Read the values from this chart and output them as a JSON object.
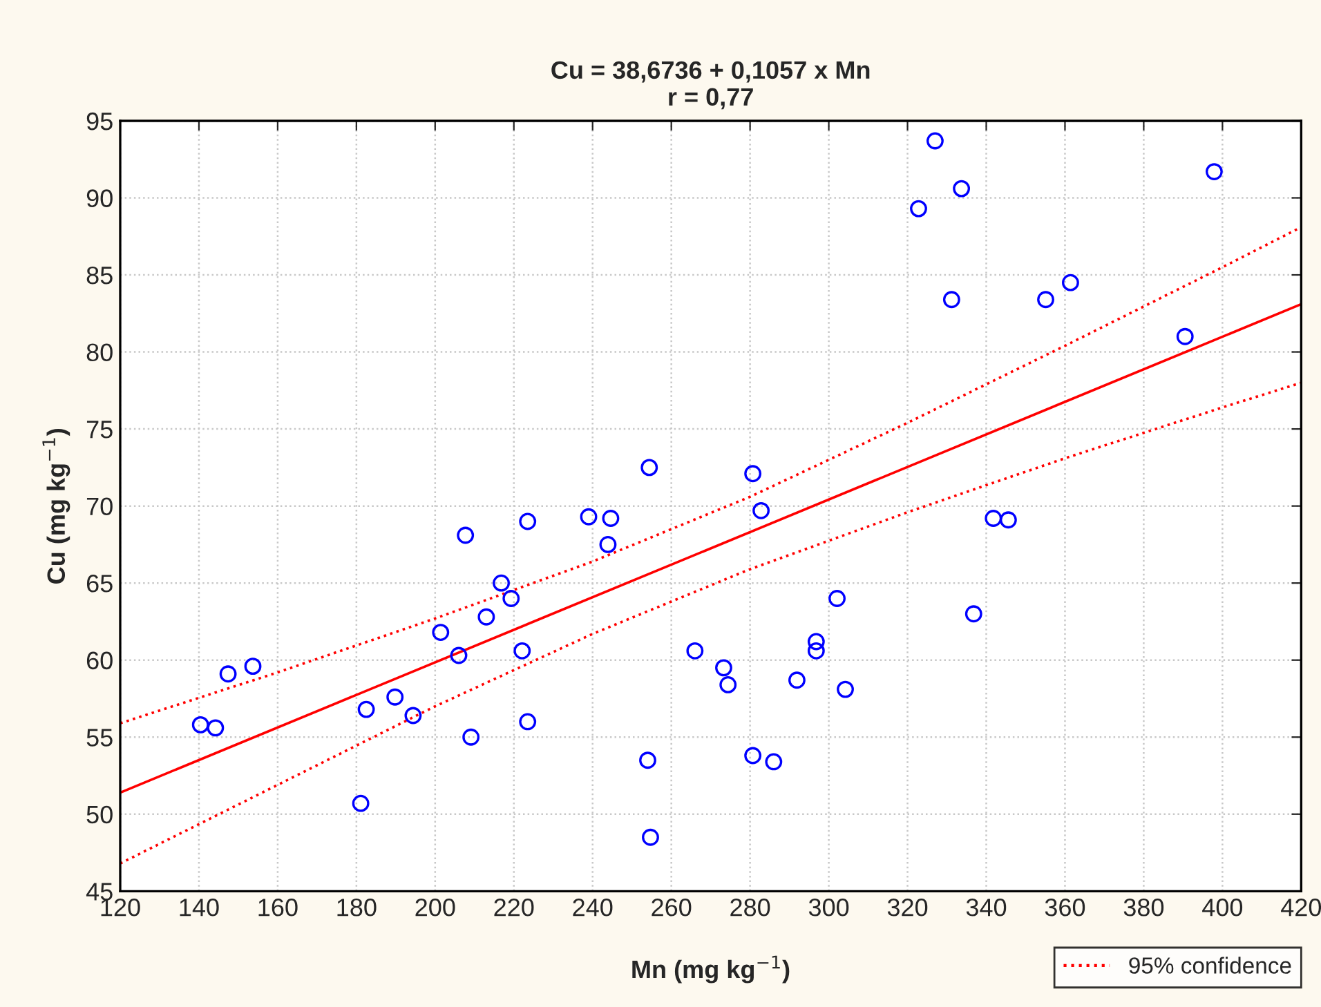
{
  "chart_data": {
    "type": "scatter",
    "title": "Cu = 38,6736 + 0,1057 x Mn\nr = 0,77",
    "xlabel": "Mn (mg kg$^{−1}$)",
    "ylabel": "Cu (mg kg$^{−1}$)",
    "xlim": [
      120,
      420
    ],
    "ylim": [
      45,
      95
    ],
    "xticks": [
      120,
      140,
      160,
      180,
      200,
      220,
      240,
      260,
      280,
      300,
      320,
      340,
      360,
      380,
      400,
      420
    ],
    "yticks": [
      45,
      50,
      55,
      60,
      65,
      70,
      75,
      80,
      85,
      90,
      95
    ],
    "grid": true,
    "legend": "bottom right",
    "series": [
      {
        "color": "#0000ff",
        "marker": "circle",
        "x": [
          140.4,
          144.2,
          147.4,
          153.7,
          181.1,
          182.5,
          189.8,
          194.4,
          201.4,
          206.0,
          207.7,
          209.1,
          213.0,
          216.8,
          219.3,
          222.1,
          223.5,
          223.5,
          239.0,
          244.6,
          243.9,
          254.4,
          266.0,
          273.3,
          274.4,
          254.0,
          254.7,
          280.7,
          282.8,
          280.7,
          286.0,
          291.9,
          296.8,
          296.8,
          302.1,
          304.2,
          336.8,
          341.8,
          345.6,
          327.0,
          333.7,
          322.8,
          331.2,
          355.1,
          361.4,
          390.5,
          397.9
        ],
        "values": [
          55.8,
          55.6,
          59.1,
          59.6,
          50.7,
          56.8,
          57.6,
          56.4,
          61.8,
          60.3,
          68.1,
          55.0,
          62.8,
          65.0,
          64.0,
          60.6,
          69.0,
          56.0,
          69.3,
          69.2,
          67.5,
          72.5,
          60.6,
          59.5,
          58.4,
          53.5,
          48.5,
          72.1,
          69.7,
          53.8,
          53.4,
          58.7,
          61.2,
          60.6,
          64.0,
          58.1,
          63.0,
          69.2,
          69.1,
          93.7,
          90.6,
          89.3,
          83.4,
          83.4,
          84.5,
          81.0,
          91.7
        ]
      },
      {
        "type": "line",
        "color": "#ff0000",
        "line_style": "solid",
        "x": [
          120,
          420
        ],
        "values": [
          51.4,
          83.1
        ]
      },
      {
        "type": "line",
        "color": "#ff0000",
        "line_style": "dotted",
        "name": "95% confidence",
        "x": [
          120,
          160,
          200,
          240,
          280,
          320,
          360,
          400,
          420
        ],
        "values": [
          55.9,
          59.2,
          62.7,
          66.4,
          70.6,
          75.4,
          80.4,
          85.5,
          88.1
        ]
      },
      {
        "type": "line",
        "color": "#ff0000",
        "line_style": "dotted",
        "x": [
          120,
          160,
          200,
          240,
          280,
          320,
          360,
          400,
          420
        ],
        "values": [
          46.8,
          51.9,
          57.0,
          61.7,
          65.9,
          69.6,
          73.1,
          76.4,
          78.0
        ]
      }
    ]
  }
}
